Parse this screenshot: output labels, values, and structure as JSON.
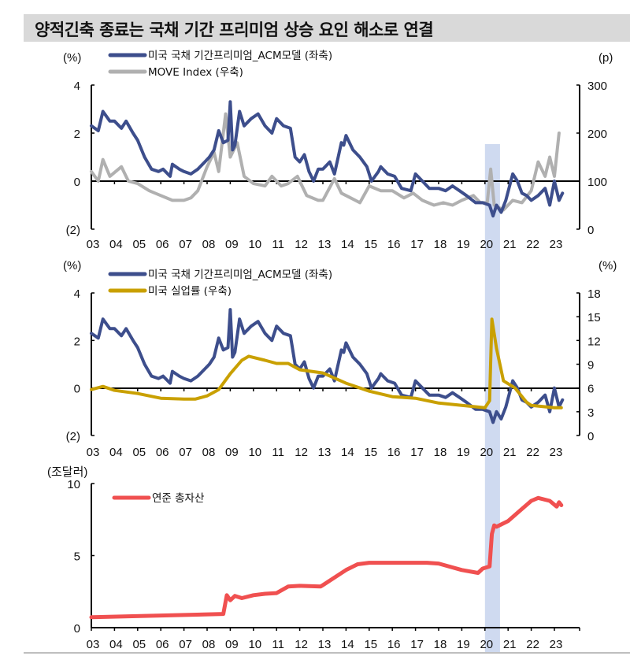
{
  "title": "양적긴축 종료는 국채 기간 프리미엄 상승 요인 해소로 연결",
  "colors": {
    "acm": "#3d4e8c",
    "move": "#b0b0b0",
    "unemployment": "#c9a000",
    "fed_assets": "#f05050",
    "highlight": "#cfdaf0"
  },
  "highlight_period": [
    2020.0,
    2020.65
  ],
  "chart_data": [
    {
      "type": "line",
      "left_unit": "(%)",
      "right_unit": "(p)",
      "left_ylim": [
        -2,
        4
      ],
      "left_ticks": [
        "(2)",
        "0",
        "2",
        "4"
      ],
      "right_ylim": [
        0,
        300
      ],
      "right_ticks": [
        "0",
        "100",
        "200",
        "300"
      ],
      "x_ticks": [
        "03",
        "04",
        "05",
        "06",
        "07",
        "08",
        "09",
        "10",
        "11",
        "12",
        "13",
        "14",
        "15",
        "16",
        "17",
        "18",
        "19",
        "20",
        "21",
        "22",
        "23"
      ],
      "series": [
        {
          "name": "미국 국채 기간프리미엄_ACM모델 (좌축)",
          "axis": "left",
          "color": "acm",
          "x": [
            2003.0,
            2003.3,
            2003.5,
            2003.8,
            2004.0,
            2004.3,
            2004.5,
            2004.8,
            2005.0,
            2005.3,
            2005.6,
            2005.9,
            2006.1,
            2006.4,
            2006.5,
            2006.8,
            2007.0,
            2007.3,
            2007.6,
            2007.9,
            2008.1,
            2008.3,
            2008.5,
            2008.7,
            2008.9,
            2009.0,
            2009.1,
            2009.2,
            2009.4,
            2009.6,
            2009.9,
            2010.2,
            2010.5,
            2010.8,
            2011.0,
            2011.3,
            2011.6,
            2011.8,
            2012.0,
            2012.2,
            2012.4,
            2012.6,
            2012.8,
            2013.0,
            2013.3,
            2013.5,
            2013.8,
            2013.9,
            2014.0,
            2014.3,
            2014.6,
            2014.9,
            2015.1,
            2015.4,
            2015.5,
            2015.8,
            2016.1,
            2016.4,
            2016.8,
            2017.0,
            2017.3,
            2017.6,
            2018.0,
            2018.3,
            2018.6,
            2018.9,
            2019.2,
            2019.6,
            2019.9,
            2020.2,
            2020.35,
            2020.5,
            2020.7,
            2020.9,
            2021.2,
            2021.4,
            2021.6,
            2021.8,
            2022.0,
            2022.3,
            2022.6,
            2022.8,
            2023.0,
            2023.2,
            2023.35
          ],
          "y": [
            2.3,
            2.1,
            2.9,
            2.5,
            2.5,
            2.2,
            2.5,
            2.0,
            1.7,
            1.0,
            0.5,
            0.4,
            0.5,
            0.2,
            0.7,
            0.5,
            0.4,
            0.3,
            0.5,
            0.8,
            1.0,
            1.3,
            2.1,
            1.6,
            1.7,
            3.3,
            1.3,
            1.5,
            2.9,
            2.3,
            2.6,
            2.8,
            2.3,
            2.0,
            2.6,
            2.3,
            2.2,
            1.0,
            0.8,
            1.1,
            0.4,
            0.0,
            0.5,
            0.5,
            0.8,
            0.3,
            1.6,
            1.5,
            1.9,
            1.3,
            1.0,
            0.6,
            0.0,
            0.4,
            0.6,
            0.3,
            0.2,
            -0.3,
            -0.4,
            0.3,
            0.0,
            -0.3,
            -0.3,
            -0.4,
            -0.2,
            -0.4,
            -0.6,
            -0.9,
            -0.9,
            -1.0,
            -1.45,
            -1.0,
            -1.3,
            -0.8,
            0.3,
            0.0,
            -0.5,
            -0.6,
            -0.8,
            -0.6,
            -0.3,
            -1.0,
            0.0,
            -0.8,
            -0.5
          ]
        },
        {
          "name": "MOVE Index (우축)",
          "axis": "right",
          "color": "move",
          "x": [
            2003.0,
            2003.3,
            2003.5,
            2003.8,
            2004.3,
            2004.6,
            2005.0,
            2005.5,
            2006.0,
            2006.5,
            2007.0,
            2007.3,
            2007.6,
            2008.0,
            2008.3,
            2008.5,
            2008.8,
            2009.0,
            2009.3,
            2009.6,
            2010.0,
            2010.5,
            2010.8,
            2011.2,
            2011.5,
            2011.9,
            2012.3,
            2012.8,
            2013.0,
            2013.5,
            2013.8,
            2014.2,
            2014.6,
            2015.0,
            2015.5,
            2016.0,
            2016.5,
            2016.9,
            2017.3,
            2017.8,
            2018.2,
            2018.6,
            2019.0,
            2019.5,
            2019.8,
            2020.1,
            2020.25,
            2020.4,
            2020.8,
            2021.2,
            2021.6,
            2022.0,
            2022.3,
            2022.6,
            2022.8,
            2023.0,
            2023.2
          ],
          "y": [
            120,
            100,
            145,
            110,
            130,
            100,
            95,
            80,
            70,
            60,
            60,
            65,
            80,
            130,
            160,
            120,
            240,
            150,
            180,
            110,
            95,
            90,
            110,
            90,
            95,
            110,
            70,
            60,
            60,
            105,
            75,
            65,
            55,
            90,
            80,
            80,
            65,
            75,
            60,
            50,
            55,
            50,
            60,
            70,
            55,
            55,
            125,
            50,
            40,
            60,
            55,
            80,
            140,
            110,
            150,
            110,
            200
          ]
        }
      ]
    },
    {
      "type": "line",
      "left_unit": "(%)",
      "right_unit": "(%)",
      "left_ylim": [
        -2,
        4
      ],
      "left_ticks": [
        "(2)",
        "0",
        "2",
        "4"
      ],
      "right_ylim": [
        0,
        18
      ],
      "right_ticks": [
        "0",
        "3",
        "6",
        "9",
        "12",
        "15",
        "18"
      ],
      "x_ticks": [
        "03",
        "04",
        "05",
        "06",
        "07",
        "08",
        "09",
        "10",
        "11",
        "12",
        "13",
        "14",
        "15",
        "16",
        "17",
        "18",
        "19",
        "20",
        "21",
        "22",
        "23"
      ],
      "series": [
        {
          "name": "미국 국채 기간프리미엄_ACM모델 (좌축)",
          "axis": "left",
          "color": "acm",
          "same_as": 0
        },
        {
          "name": "미국 실업률 (우축)",
          "axis": "right",
          "color": "unemployment",
          "x": [
            2003.0,
            2003.5,
            2004.0,
            2005.0,
            2006.0,
            2007.0,
            2007.5,
            2008.0,
            2008.5,
            2009.0,
            2009.5,
            2009.8,
            2010.5,
            2011.0,
            2011.5,
            2012.0,
            2013.0,
            2014.0,
            2015.0,
            2016.0,
            2017.0,
            2018.0,
            2019.0,
            2020.0,
            2020.2,
            2020.3,
            2020.5,
            2020.8,
            2021.3,
            2021.8,
            2022.0,
            2023.0,
            2023.3
          ],
          "y": [
            5.8,
            6.2,
            5.7,
            5.3,
            4.7,
            4.6,
            4.6,
            5.0,
            5.8,
            7.8,
            9.5,
            10.0,
            9.5,
            9.1,
            9.1,
            8.3,
            7.9,
            6.6,
            5.6,
            4.9,
            4.7,
            4.1,
            3.8,
            3.5,
            4.4,
            14.7,
            11.0,
            6.9,
            6.0,
            4.2,
            3.8,
            3.5,
            3.5
          ]
        }
      ]
    },
    {
      "type": "line",
      "left_unit": "(조달러)",
      "left_ylim": [
        0,
        10
      ],
      "left_ticks": [
        "0",
        "5",
        "10"
      ],
      "x_ticks": [
        "03",
        "04",
        "05",
        "06",
        "07",
        "08",
        "09",
        "10",
        "11",
        "12",
        "13",
        "14",
        "15",
        "16",
        "17",
        "18",
        "19",
        "20",
        "21",
        "22",
        "23"
      ],
      "series": [
        {
          "name": "연준 총자산",
          "axis": "left",
          "color": "fed_assets",
          "x": [
            2003.0,
            2008.7,
            2008.85,
            2009.0,
            2009.2,
            2009.5,
            2010.0,
            2010.5,
            2011.0,
            2011.5,
            2012.0,
            2012.9,
            2013.0,
            2014.0,
            2014.5,
            2015.0,
            2017.5,
            2018.0,
            2019.0,
            2019.7,
            2019.9,
            2020.2,
            2020.3,
            2020.4,
            2020.5,
            2021.0,
            2021.5,
            2022.0,
            2022.3,
            2022.8,
            2023.1,
            2023.2,
            2023.3
          ],
          "y": [
            0.72,
            0.95,
            2.25,
            1.9,
            2.2,
            2.05,
            2.25,
            2.35,
            2.4,
            2.85,
            2.9,
            2.85,
            2.95,
            4.0,
            4.4,
            4.5,
            4.5,
            4.45,
            4.0,
            3.8,
            4.1,
            4.25,
            6.5,
            7.1,
            7.0,
            7.4,
            8.1,
            8.8,
            9.0,
            8.8,
            8.4,
            8.7,
            8.5
          ]
        }
      ]
    }
  ]
}
